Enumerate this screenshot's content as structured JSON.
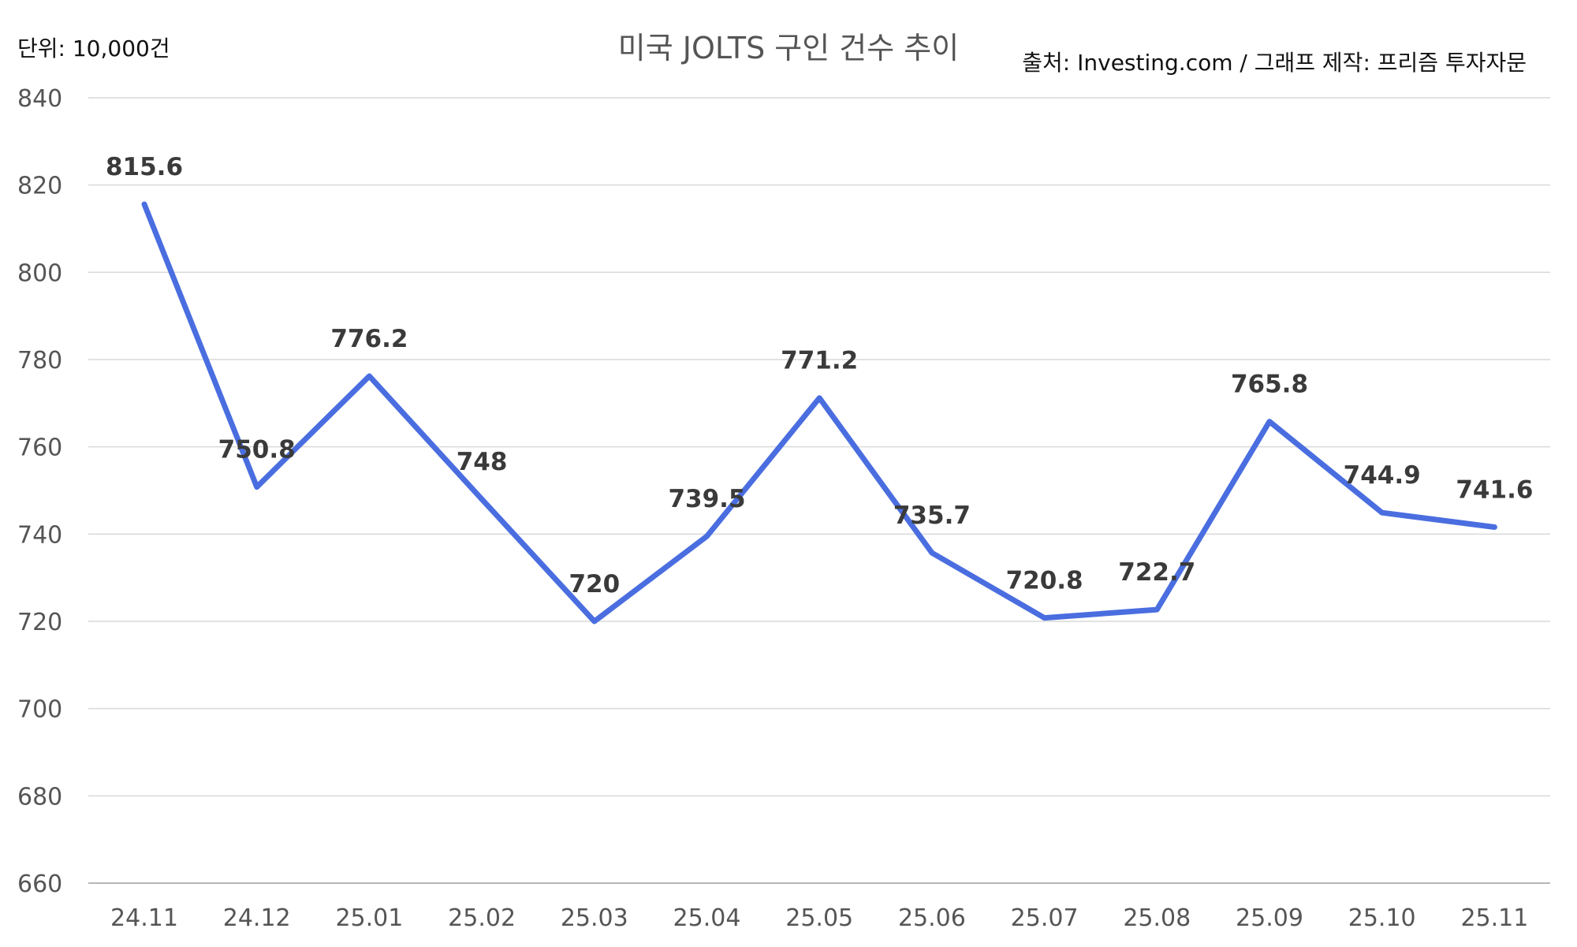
{
  "chart_data": {
    "type": "line",
    "title": "미국 JOLTS 구인 건수 추이",
    "unit_label": "단위: 10,000건",
    "source_label": "출처: Investing.com / 그래프 제작: 프리즘 투자자문",
    "categories": [
      "24.11",
      "24.12",
      "25.01",
      "25.02",
      "25.03",
      "25.04",
      "25.05",
      "25.06",
      "25.07",
      "25.08",
      "25.09",
      "25.10",
      "25.11"
    ],
    "series": [
      {
        "values": [
          815.6,
          750.8,
          776.2,
          748,
          720,
          739.5,
          771.2,
          735.7,
          720.8,
          722.7,
          765.8,
          744.9,
          741.6
        ],
        "labels": [
          "815.6",
          "750.8",
          "776.2",
          "748",
          "720",
          "739.5",
          "771.2",
          "735.7",
          "720.8",
          "722.7",
          "765.8",
          "744.9",
          "741.6"
        ],
        "color": "#4a6ee0"
      }
    ],
    "ylim": [
      660,
      840
    ],
    "yticks": [
      660,
      680,
      700,
      720,
      740,
      760,
      780,
      800,
      820,
      840
    ],
    "xlabel": "",
    "ylabel": "",
    "grid": true,
    "legend": "none"
  }
}
